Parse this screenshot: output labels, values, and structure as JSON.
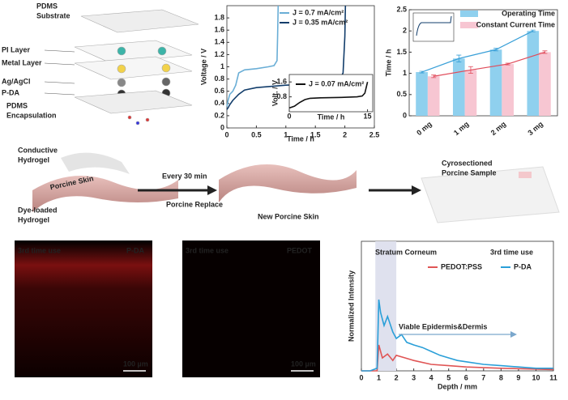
{
  "diagram": {
    "device_labels": [
      [
        "PDMS",
        "Substrate"
      ],
      [
        "PI Layer"
      ],
      [
        "Metal Layer"
      ],
      [
        "Ag/AgCl"
      ],
      [
        "P-DA"
      ],
      [
        "PDMS",
        "Encapsulation"
      ]
    ],
    "skin_labels": [
      [
        "Conductive",
        "Hydrogel"
      ],
      [
        "Dye-loaded",
        "Hydrogel"
      ]
    ],
    "skin_on_image": "Porcine Skin",
    "arrow1_top": "Every 30 min",
    "arrow1_bottom": "Porcine Replace",
    "new_skin": "New Porcine Skin",
    "sample": [
      "Cyrosectioned",
      "Porcine Sample"
    ]
  },
  "micrographs": [
    {
      "label": "3rd time use",
      "name": "P-DA",
      "scale": "100 µm"
    },
    {
      "label": "3rd time use",
      "name": "PEDOT",
      "scale": "100 µm"
    }
  ],
  "chart_data": [
    {
      "type": "line",
      "xlabel": "Time / h",
      "ylabel": "Voltage / V",
      "xlim": [
        0,
        2.5
      ],
      "xticks": [
        0,
        0.5,
        1,
        1.5,
        2,
        2.5
      ],
      "ylim": [
        0,
        2.0
      ],
      "yticks": [
        0,
        0.2,
        0.4,
        0.6,
        0.8,
        1.0,
        1.2,
        1.4,
        1.6,
        1.8
      ],
      "series": [
        {
          "name": "J = 0.7 mA/cm²",
          "color": "#6aaed6",
          "x": [
            0,
            0.02,
            0.05,
            0.1,
            0.15,
            0.2,
            0.3,
            0.5,
            0.7,
            0.8,
            0.85,
            0.86,
            0.87
          ],
          "values": [
            0.35,
            0.45,
            0.55,
            0.6,
            0.7,
            0.9,
            0.95,
            0.97,
            1.0,
            1.02,
            1.1,
            1.5,
            2.0
          ]
        },
        {
          "name": "J = 0.35 mA/cm²",
          "color": "#123d6b",
          "x": [
            0,
            0.02,
            0.05,
            0.1,
            0.2,
            0.3,
            0.5,
            1.0,
            1.5,
            1.9,
            1.97,
            2.0,
            2.01
          ],
          "values": [
            0.3,
            0.33,
            0.38,
            0.45,
            0.55,
            0.62,
            0.66,
            0.7,
            0.72,
            0.76,
            0.9,
            1.5,
            2.0
          ]
        }
      ]
    },
    {
      "type": "line",
      "xlabel": "Time / h",
      "ylabel": "Volt. / V",
      "xlim": [
        0,
        16
      ],
      "xticks": [
        0,
        15
      ],
      "ylim": [
        0,
        2
      ],
      "yticks": [
        0.8,
        1.6
      ],
      "series": [
        {
          "name": "J = 0.07 mA/cm²",
          "color": "#111111",
          "x": [
            0,
            1,
            2,
            3,
            4,
            6,
            10,
            13,
            14,
            14.5,
            15
          ],
          "values": [
            0.2,
            0.3,
            0.5,
            0.65,
            0.72,
            0.75,
            0.77,
            0.8,
            0.85,
            1.0,
            1.6
          ]
        }
      ]
    },
    {
      "type": "bar",
      "ylabel": "Time / h",
      "categories": [
        "0 mg",
        "1 mg",
        "2 mg",
        "3 mg"
      ],
      "ylim": [
        0,
        2.5
      ],
      "yticks": [
        0,
        0.5,
        1,
        1.5,
        2,
        2.5
      ],
      "connect": true,
      "series": [
        {
          "name": "Operating Time",
          "color": "#8fd0ee",
          "line_color": "#3aa0d8",
          "values": [
            1.03,
            1.35,
            1.56,
            2.0
          ],
          "errors": [
            0.02,
            0.08,
            0.03,
            0.02
          ]
        },
        {
          "name": "Constant Current Time",
          "color": "#f7c6d2",
          "line_color": "#e04b5a",
          "values": [
            0.93,
            1.08,
            1.22,
            1.5
          ],
          "errors": [
            0.03,
            0.08,
            0.02,
            0.03
          ]
        }
      ]
    },
    {
      "type": "line",
      "xlabel": "Depth / mm",
      "ylabel": "Normalized Intensity",
      "xlim": [
        0,
        11
      ],
      "xticks": [
        0,
        1,
        2,
        3,
        4,
        5,
        6,
        7,
        8,
        9,
        10,
        11
      ],
      "ylim": [
        0,
        1
      ],
      "highlight_x": [
        0.8,
        2
      ],
      "annotations": [
        "Stratum Corneum",
        "3rd time use",
        "Viable Epidermis&Dermis"
      ],
      "series": [
        {
          "name": "PEDOT:PSS",
          "color": "#e05555",
          "x": [
            0,
            0.5,
            0.9,
            1,
            1.2,
            1.5,
            1.8,
            2,
            2.5,
            3,
            4,
            5,
            6,
            8,
            11
          ],
          "values": [
            0,
            0,
            0,
            0.2,
            0.1,
            0.13,
            0.08,
            0.12,
            0.1,
            0.08,
            0.05,
            0.04,
            0.03,
            0.02,
            0.01
          ]
        },
        {
          "name": "P-DA",
          "color": "#2a9fd8",
          "x": [
            0,
            0.5,
            0.9,
            1,
            1.1,
            1.3,
            1.5,
            1.8,
            2,
            2.3,
            2.6,
            3,
            3.5,
            4,
            4.5,
            5,
            5.5,
            6,
            7,
            8,
            9,
            10,
            11
          ],
          "values": [
            0,
            0,
            0.02,
            0.55,
            0.45,
            0.35,
            0.42,
            0.3,
            0.25,
            0.28,
            0.22,
            0.2,
            0.18,
            0.15,
            0.12,
            0.1,
            0.08,
            0.07,
            0.05,
            0.04,
            0.03,
            0.02,
            0.02
          ]
        }
      ]
    }
  ]
}
